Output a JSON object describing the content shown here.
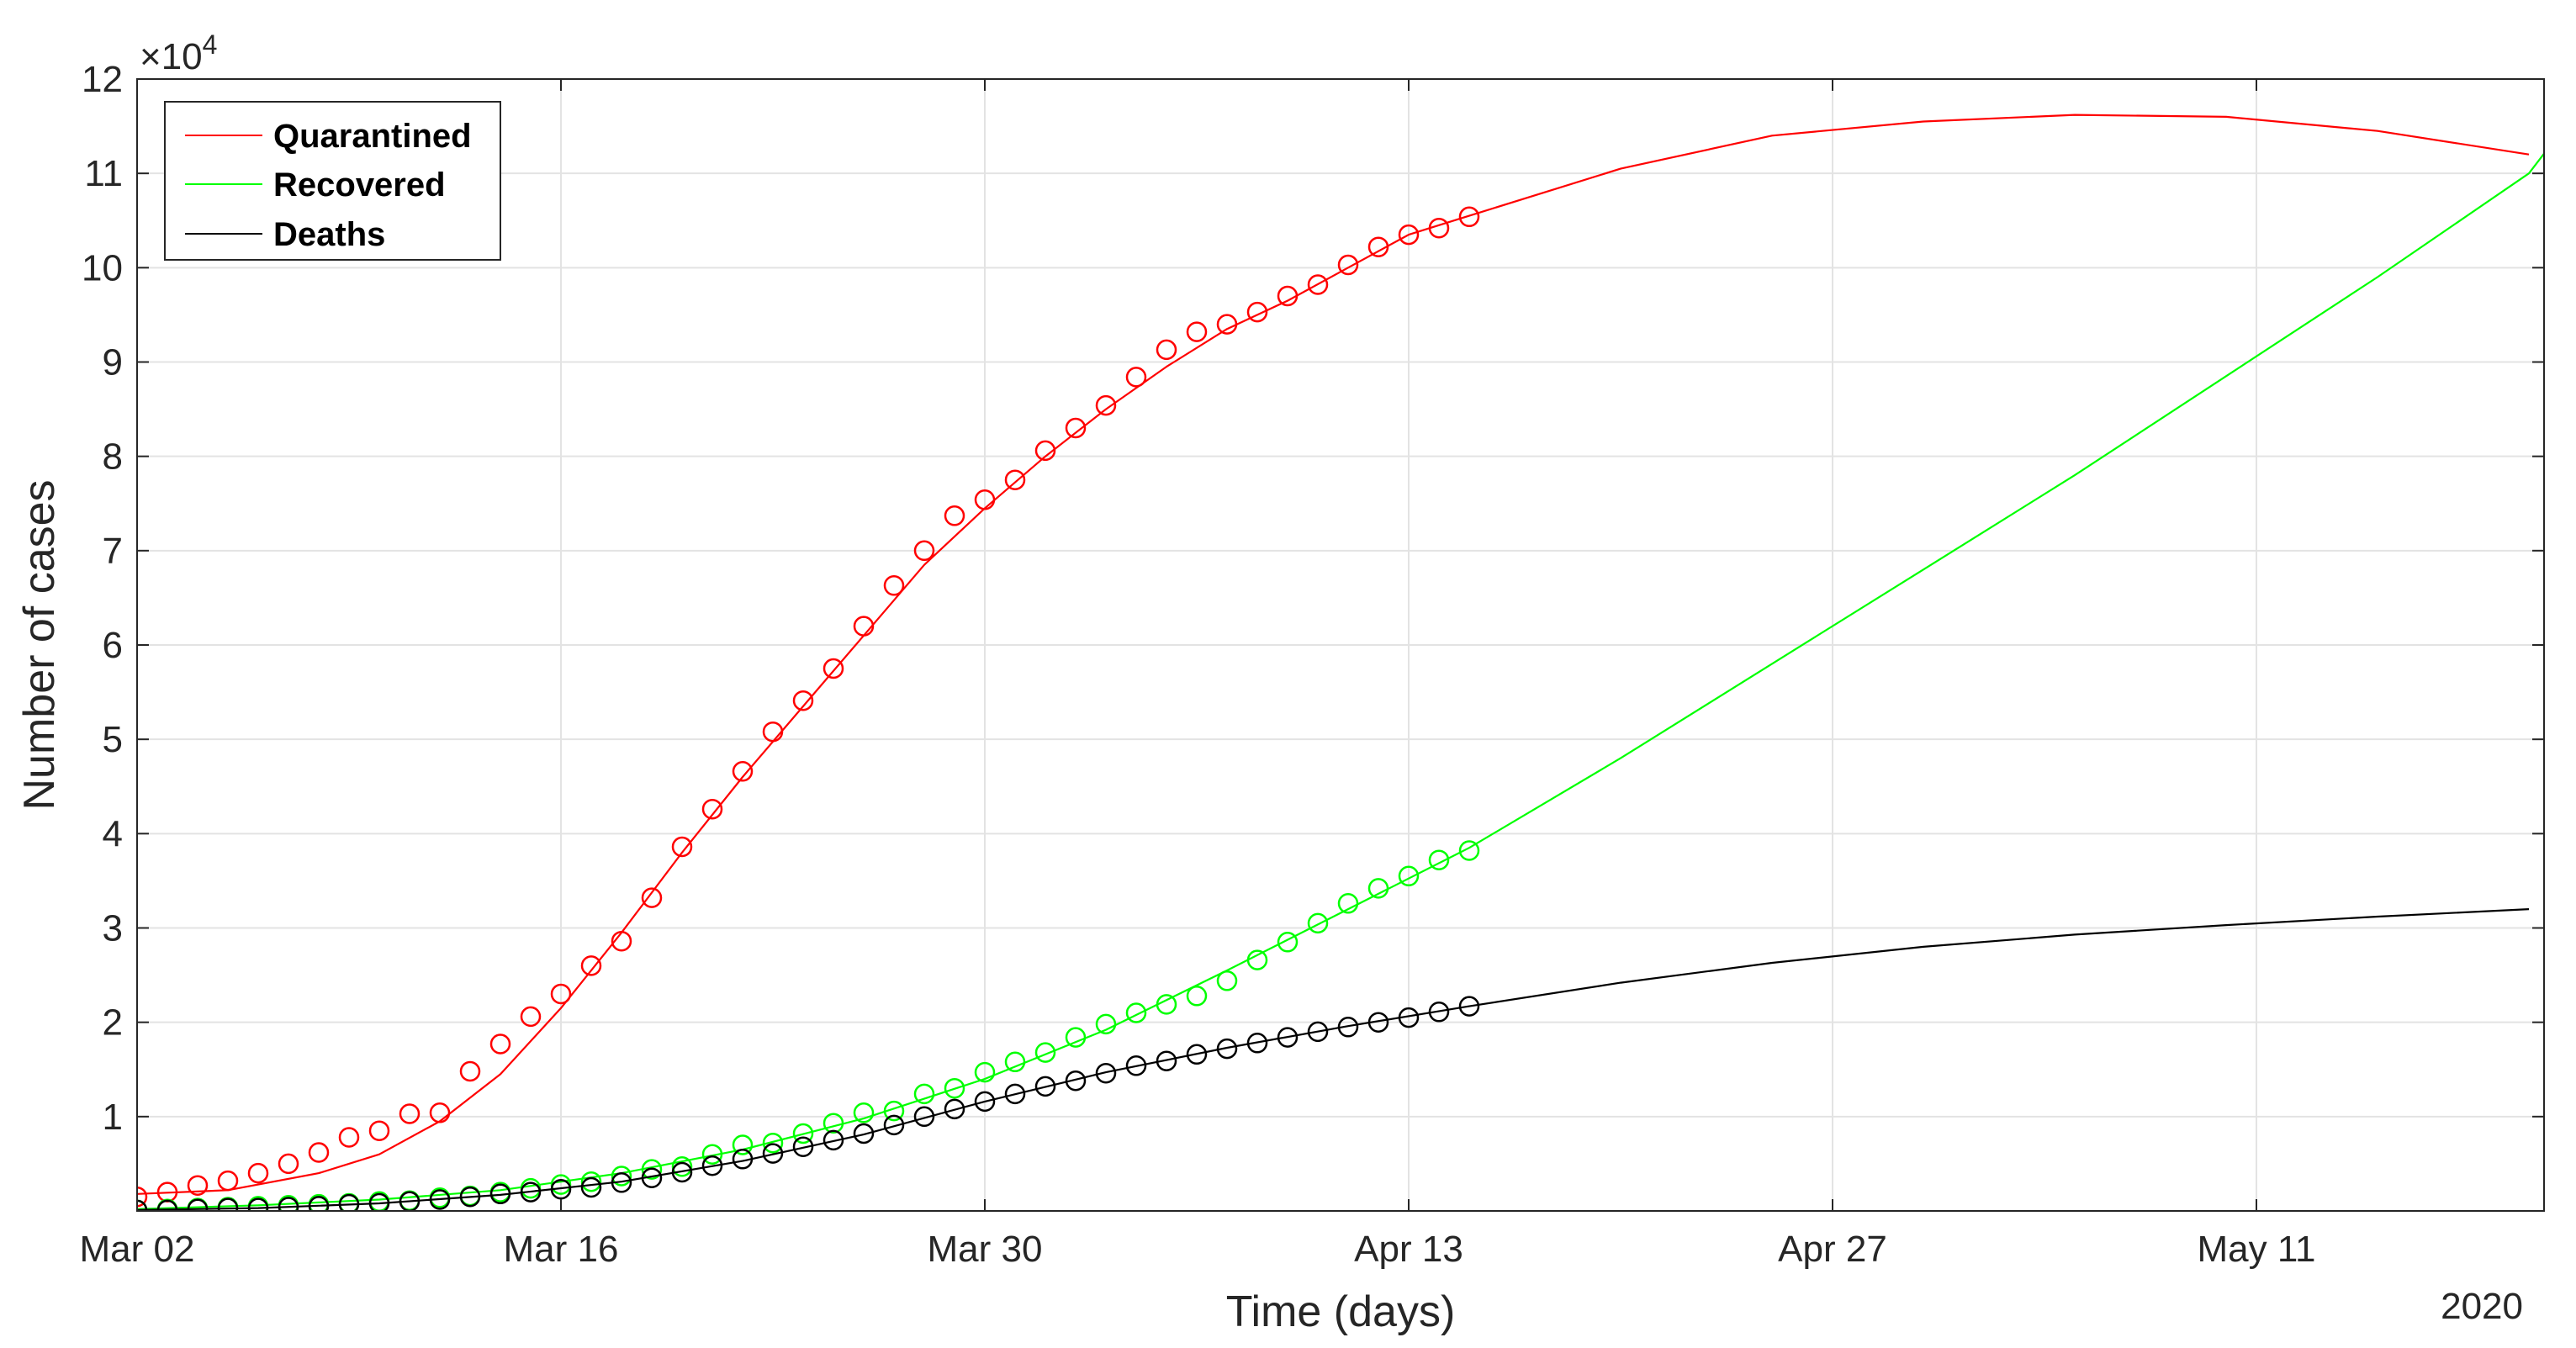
{
  "chart_data": {
    "type": "line",
    "xlabel": "Time (days)",
    "ylabel": "Number of cases",
    "year_label": "2020",
    "y_exponent_label": "×10",
    "y_exponent_power": "4",
    "x_range": [
      "Mar 02",
      "May 20"
    ],
    "ylim": [
      0,
      12
    ],
    "grid": true,
    "legend_position": "top-left",
    "x_ticks": [
      {
        "date": "2020-03-02",
        "label": "Mar 02"
      },
      {
        "date": "2020-03-16",
        "label": "Mar 16"
      },
      {
        "date": "2020-03-30",
        "label": "Mar 30"
      },
      {
        "date": "2020-04-13",
        "label": "Apr 13"
      },
      {
        "date": "2020-04-27",
        "label": "Apr 27"
      },
      {
        "date": "2020-05-11",
        "label": "May 11"
      }
    ],
    "y_ticks": [
      "1",
      "2",
      "3",
      "4",
      "5",
      "6",
      "7",
      "8",
      "9",
      "10",
      "11",
      "12"
    ],
    "series": [
      {
        "name": "Quarantined",
        "color": "#ff0000",
        "observed": [
          [
            "2020-03-02",
            0.15
          ],
          [
            "2020-03-03",
            0.2
          ],
          [
            "2020-03-04",
            0.27
          ],
          [
            "2020-03-05",
            0.32
          ],
          [
            "2020-03-06",
            0.4
          ],
          [
            "2020-03-07",
            0.5
          ],
          [
            "2020-03-08",
            0.62
          ],
          [
            "2020-03-09",
            0.78
          ],
          [
            "2020-03-10",
            0.85
          ],
          [
            "2020-03-11",
            1.03
          ],
          [
            "2020-03-12",
            1.04
          ],
          [
            "2020-03-13",
            1.48
          ],
          [
            "2020-03-14",
            1.77
          ],
          [
            "2020-03-15",
            2.06
          ],
          [
            "2020-03-16",
            2.3
          ],
          [
            "2020-03-17",
            2.6
          ],
          [
            "2020-03-18",
            2.86
          ],
          [
            "2020-03-19",
            3.32
          ],
          [
            "2020-03-20",
            3.86
          ],
          [
            "2020-03-21",
            4.26
          ],
          [
            "2020-03-22",
            4.66
          ],
          [
            "2020-03-23",
            5.08
          ],
          [
            "2020-03-24",
            5.41
          ],
          [
            "2020-03-25",
            5.75
          ],
          [
            "2020-03-26",
            6.2
          ],
          [
            "2020-03-27",
            6.63
          ],
          [
            "2020-03-28",
            7.0
          ],
          [
            "2020-03-29",
            7.37
          ],
          [
            "2020-03-30",
            7.54
          ],
          [
            "2020-03-31",
            7.75
          ],
          [
            "2020-04-01",
            8.06
          ],
          [
            "2020-04-02",
            8.3
          ],
          [
            "2020-04-03",
            8.54
          ],
          [
            "2020-04-04",
            8.84
          ],
          [
            "2020-04-05",
            9.13
          ],
          [
            "2020-04-06",
            9.32
          ],
          [
            "2020-04-07",
            9.4
          ],
          [
            "2020-04-08",
            9.53
          ],
          [
            "2020-04-09",
            9.7
          ],
          [
            "2020-04-10",
            9.82
          ],
          [
            "2020-04-11",
            10.03
          ],
          [
            "2020-04-12",
            10.22
          ],
          [
            "2020-04-13",
            10.35
          ],
          [
            "2020-04-14",
            10.42
          ],
          [
            "2020-04-15",
            10.54
          ]
        ],
        "fit": [
          [
            "2020-03-02",
            0.18
          ],
          [
            "2020-03-05",
            0.22
          ],
          [
            "2020-03-08",
            0.4
          ],
          [
            "2020-03-10",
            0.6
          ],
          [
            "2020-03-12",
            0.95
          ],
          [
            "2020-03-14",
            1.45
          ],
          [
            "2020-03-16",
            2.15
          ],
          [
            "2020-03-18",
            2.95
          ],
          [
            "2020-03-20",
            3.8
          ],
          [
            "2020-03-22",
            4.6
          ],
          [
            "2020-03-24",
            5.35
          ],
          [
            "2020-03-26",
            6.1
          ],
          [
            "2020-03-28",
            6.85
          ],
          [
            "2020-03-30",
            7.45
          ],
          [
            "2020-04-01",
            8.0
          ],
          [
            "2020-04-03",
            8.5
          ],
          [
            "2020-04-05",
            8.95
          ],
          [
            "2020-04-07",
            9.35
          ],
          [
            "2020-04-09",
            9.65
          ],
          [
            "2020-04-11",
            10.0
          ],
          [
            "2020-04-13",
            10.35
          ],
          [
            "2020-04-15",
            10.55
          ],
          [
            "2020-04-20",
            11.05
          ],
          [
            "2020-04-25",
            11.4
          ],
          [
            "2020-04-30",
            11.55
          ],
          [
            "2020-05-05",
            11.62
          ],
          [
            "2020-05-10",
            11.6
          ],
          [
            "2020-05-15",
            11.45
          ],
          [
            "2020-05-20",
            11.2
          ]
        ]
      },
      {
        "name": "Recovered",
        "color": "#00ff00",
        "observed": [
          [
            "2020-03-02",
            0.01
          ],
          [
            "2020-03-03",
            0.02
          ],
          [
            "2020-03-04",
            0.03
          ],
          [
            "2020-03-05",
            0.04
          ],
          [
            "2020-03-06",
            0.05
          ],
          [
            "2020-03-07",
            0.06
          ],
          [
            "2020-03-08",
            0.07
          ],
          [
            "2020-03-09",
            0.08
          ],
          [
            "2020-03-10",
            0.1
          ],
          [
            "2020-03-11",
            0.11
          ],
          [
            "2020-03-12",
            0.14
          ],
          [
            "2020-03-13",
            0.16
          ],
          [
            "2020-03-14",
            0.2
          ],
          [
            "2020-03-15",
            0.24
          ],
          [
            "2020-03-16",
            0.28
          ],
          [
            "2020-03-17",
            0.31
          ],
          [
            "2020-03-18",
            0.37
          ],
          [
            "2020-03-19",
            0.44
          ],
          [
            "2020-03-20",
            0.47
          ],
          [
            "2020-03-21",
            0.6
          ],
          [
            "2020-03-22",
            0.7
          ],
          [
            "2020-03-23",
            0.72
          ],
          [
            "2020-03-24",
            0.82
          ],
          [
            "2020-03-25",
            0.93
          ],
          [
            "2020-03-26",
            1.04
          ],
          [
            "2020-03-27",
            1.06
          ],
          [
            "2020-03-28",
            1.24
          ],
          [
            "2020-03-29",
            1.3
          ],
          [
            "2020-03-30",
            1.47
          ],
          [
            "2020-03-31",
            1.58
          ],
          [
            "2020-04-01",
            1.68
          ],
          [
            "2020-04-02",
            1.84
          ],
          [
            "2020-04-03",
            1.98
          ],
          [
            "2020-04-04",
            2.1
          ],
          [
            "2020-04-05",
            2.19
          ],
          [
            "2020-04-06",
            2.28
          ],
          [
            "2020-04-07",
            2.44
          ],
          [
            "2020-04-08",
            2.66
          ],
          [
            "2020-04-09",
            2.85
          ],
          [
            "2020-04-10",
            3.05
          ],
          [
            "2020-04-11",
            3.26
          ],
          [
            "2020-04-12",
            3.42
          ],
          [
            "2020-04-13",
            3.55
          ],
          [
            "2020-04-14",
            3.72
          ],
          [
            "2020-04-15",
            3.82
          ]
        ],
        "fit": [
          [
            "2020-03-02",
            0.02
          ],
          [
            "2020-03-06",
            0.06
          ],
          [
            "2020-03-10",
            0.12
          ],
          [
            "2020-03-14",
            0.22
          ],
          [
            "2020-03-18",
            0.4
          ],
          [
            "2020-03-22",
            0.65
          ],
          [
            "2020-03-26",
            0.98
          ],
          [
            "2020-03-30",
            1.4
          ],
          [
            "2020-04-03",
            1.92
          ],
          [
            "2020-04-07",
            2.55
          ],
          [
            "2020-04-11",
            3.2
          ],
          [
            "2020-04-15",
            3.85
          ],
          [
            "2020-04-20",
            4.8
          ],
          [
            "2020-04-25",
            5.8
          ],
          [
            "2020-04-30",
            6.8
          ],
          [
            "2020-05-05",
            7.8
          ],
          [
            "2020-05-10",
            8.85
          ],
          [
            "2020-05-15",
            9.9
          ],
          [
            "2020-05-20",
            11.0
          ],
          [
            "2020-05-21",
            11.42
          ]
        ]
      },
      {
        "name": "Deaths",
        "color": "#000000",
        "observed": [
          [
            "2020-03-02",
            0.01
          ],
          [
            "2020-03-03",
            0.01
          ],
          [
            "2020-03-04",
            0.02
          ],
          [
            "2020-03-05",
            0.03
          ],
          [
            "2020-03-06",
            0.03
          ],
          [
            "2020-03-07",
            0.04
          ],
          [
            "2020-03-08",
            0.05
          ],
          [
            "2020-03-09",
            0.07
          ],
          [
            "2020-03-10",
            0.08
          ],
          [
            "2020-03-11",
            0.1
          ],
          [
            "2020-03-12",
            0.12
          ],
          [
            "2020-03-13",
            0.15
          ],
          [
            "2020-03-14",
            0.18
          ],
          [
            "2020-03-15",
            0.2
          ],
          [
            "2020-03-16",
            0.23
          ],
          [
            "2020-03-17",
            0.25
          ],
          [
            "2020-03-18",
            0.3
          ],
          [
            "2020-03-19",
            0.35
          ],
          [
            "2020-03-20",
            0.41
          ],
          [
            "2020-03-21",
            0.48
          ],
          [
            "2020-03-22",
            0.55
          ],
          [
            "2020-03-23",
            0.61
          ],
          [
            "2020-03-24",
            0.68
          ],
          [
            "2020-03-25",
            0.75
          ],
          [
            "2020-03-26",
            0.82
          ],
          [
            "2020-03-27",
            0.91
          ],
          [
            "2020-03-28",
            1.0
          ],
          [
            "2020-03-29",
            1.08
          ],
          [
            "2020-03-30",
            1.16
          ],
          [
            "2020-03-31",
            1.24
          ],
          [
            "2020-04-01",
            1.32
          ],
          [
            "2020-04-02",
            1.38
          ],
          [
            "2020-04-03",
            1.46
          ],
          [
            "2020-04-04",
            1.54
          ],
          [
            "2020-04-05",
            1.59
          ],
          [
            "2020-04-06",
            1.66
          ],
          [
            "2020-04-07",
            1.72
          ],
          [
            "2020-04-08",
            1.78
          ],
          [
            "2020-04-09",
            1.84
          ],
          [
            "2020-04-10",
            1.9
          ],
          [
            "2020-04-11",
            1.95
          ],
          [
            "2020-04-12",
            2.0
          ],
          [
            "2020-04-13",
            2.05
          ],
          [
            "2020-04-14",
            2.11
          ],
          [
            "2020-04-15",
            2.17
          ]
        ],
        "fit": [
          [
            "2020-03-02",
            0.01
          ],
          [
            "2020-03-06",
            0.03
          ],
          [
            "2020-03-10",
            0.08
          ],
          [
            "2020-03-14",
            0.17
          ],
          [
            "2020-03-18",
            0.31
          ],
          [
            "2020-03-22",
            0.53
          ],
          [
            "2020-03-26",
            0.81
          ],
          [
            "2020-03-30",
            1.16
          ],
          [
            "2020-04-03",
            1.47
          ],
          [
            "2020-04-07",
            1.73
          ],
          [
            "2020-04-11",
            1.96
          ],
          [
            "2020-04-15",
            2.17
          ],
          [
            "2020-04-20",
            2.42
          ],
          [
            "2020-04-25",
            2.63
          ],
          [
            "2020-04-30",
            2.8
          ],
          [
            "2020-05-05",
            2.93
          ],
          [
            "2020-05-10",
            3.03
          ],
          [
            "2020-05-15",
            3.12
          ],
          [
            "2020-05-20",
            3.2
          ]
        ]
      }
    ]
  }
}
